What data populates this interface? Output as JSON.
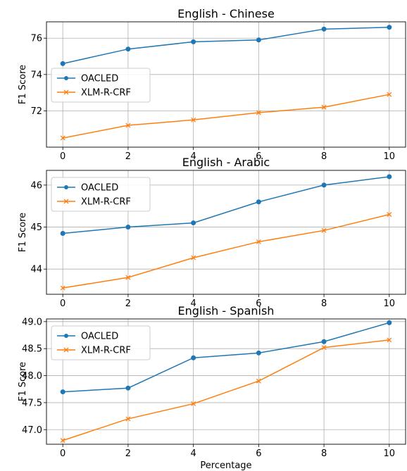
{
  "figure": {
    "xlabel": "Percentage"
  },
  "colors": {
    "OACLED": "#1f77b4",
    "XLM-R-CRF": "#ff7f0e"
  },
  "chart_data": [
    {
      "type": "line",
      "title": "English - Chinese",
      "xlabel": "",
      "ylabel": "F1 Score",
      "x": [
        0,
        2,
        4,
        6,
        8,
        10
      ],
      "xticks": [
        "0",
        "2",
        "4",
        "6",
        "8",
        "10"
      ],
      "yticks": [
        "72",
        "74",
        "76"
      ],
      "ylim": [
        70.0,
        76.9
      ],
      "grid": true,
      "legend": "center-left",
      "series": [
        {
          "name": "OACLED",
          "marker": "circle",
          "values": [
            74.6,
            75.4,
            75.8,
            75.9,
            76.5,
            76.6
          ]
        },
        {
          "name": "XLM-R-CRF",
          "marker": "x",
          "values": [
            70.5,
            71.2,
            71.5,
            71.9,
            72.2,
            72.9
          ]
        }
      ]
    },
    {
      "type": "line",
      "title": "English - Arabic",
      "xlabel": "",
      "ylabel": "F1 Score",
      "x": [
        0,
        2,
        4,
        6,
        8,
        10
      ],
      "xticks": [
        "0",
        "2",
        "4",
        "6",
        "8",
        "10"
      ],
      "yticks": [
        "44",
        "45",
        "46"
      ],
      "ylim": [
        43.4,
        46.35
      ],
      "grid": true,
      "legend": "upper-left",
      "series": [
        {
          "name": "OACLED",
          "marker": "circle",
          "values": [
            44.85,
            45.0,
            45.1,
            45.6,
            46.0,
            46.2
          ]
        },
        {
          "name": "XLM-R-CRF",
          "marker": "x",
          "values": [
            43.55,
            43.8,
            44.27,
            44.65,
            44.92,
            45.3
          ]
        }
      ]
    },
    {
      "type": "line",
      "title": "English - Spanish",
      "xlabel": "Percentage",
      "ylabel": "F1 Score",
      "x": [
        0,
        2,
        4,
        6,
        8,
        10
      ],
      "xticks": [
        "0",
        "2",
        "4",
        "6",
        "8",
        "10"
      ],
      "yticks": [
        "47.0",
        "47.5",
        "48.0",
        "48.5",
        "49.0"
      ],
      "ylim": [
        46.73,
        49.05
      ],
      "grid": true,
      "legend": "upper-left",
      "series": [
        {
          "name": "OACLED",
          "marker": "circle",
          "values": [
            47.7,
            47.77,
            48.33,
            48.42,
            48.63,
            48.98
          ]
        },
        {
          "name": "XLM-R-CRF",
          "marker": "x",
          "values": [
            46.8,
            47.2,
            47.48,
            47.9,
            48.52,
            48.66
          ]
        }
      ]
    }
  ]
}
